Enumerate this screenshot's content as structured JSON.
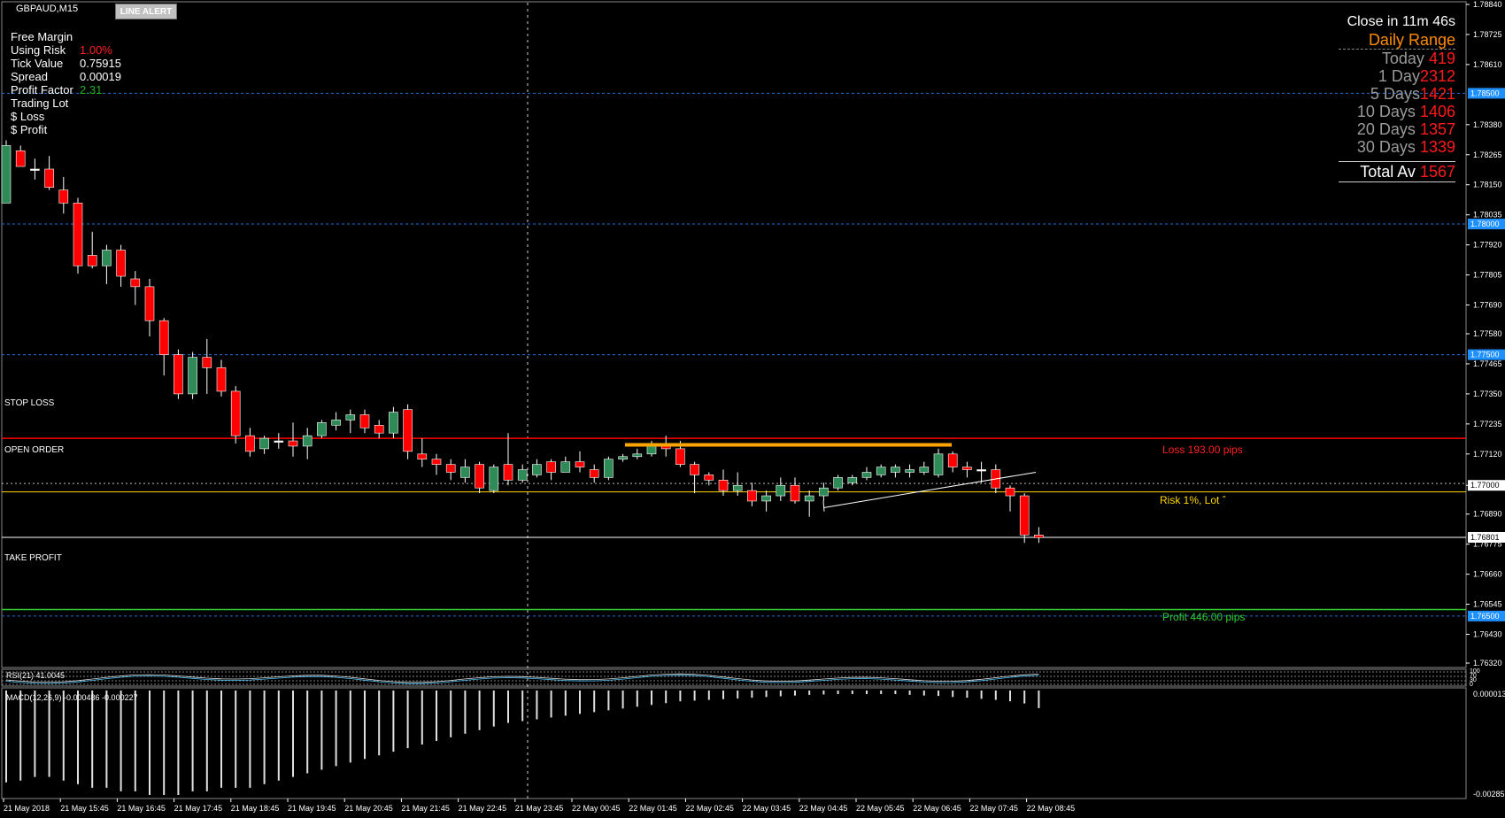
{
  "header": {
    "symbol": "GBPAUD,M15",
    "line_alert_button": "LINE ALERT"
  },
  "info_panel": {
    "rows": [
      {
        "label": "Free Margin",
        "value": "",
        "color": "#ffffff"
      },
      {
        "label": "Using Risk",
        "value": "1.00%",
        "color": "#ff2020"
      },
      {
        "label": "Tick Value",
        "value": "0.75915",
        "color": "#ffffff"
      },
      {
        "label": "Spread",
        "value": "0.00019",
        "color": "#ffffff"
      },
      {
        "label": "Profit Factor",
        "value": "2.31",
        "color": "#22b022"
      },
      {
        "label": "Trading Lot",
        "value": "",
        "color": "#ffffff"
      },
      {
        "label": "$ Loss",
        "value": "",
        "color": "#ff2020"
      },
      {
        "label": "$ Profit",
        "value": "",
        "color": "#22b022"
      }
    ]
  },
  "daily_range": {
    "countdown": "Close in 11m 46s",
    "title": "Daily Range",
    "rows": [
      {
        "label": "Today",
        "value": "419"
      },
      {
        "label": "1 Day",
        "value": "2312"
      },
      {
        "label": "5 Days",
        "value": "1421"
      },
      {
        "label": "10 Days",
        "value": "1406"
      },
      {
        "label": "20 Days",
        "value": "1357"
      },
      {
        "label": "30 Days",
        "value": "1339"
      }
    ],
    "total_label": "Total Av",
    "total_value": "1567"
  },
  "trade_lines": {
    "stop_loss_label": "STOP LOSS",
    "open_order_label": "OPEN ORDER",
    "take_profit_label": "TAKE PROFIT",
    "loss_text": "Loss 193.00 pips",
    "risk_text": "Risk 1%, Lot ˆ",
    "profit_text": "Profit 446.00 pips"
  },
  "indicators": {
    "rsi_label": "RSI(21) 41.0045",
    "macd_label": "MACD(12,26,9) -0.000486 -0.000227",
    "macd_axis_top": "0.000013",
    "macd_axis_bottom": "-0.002857",
    "rsi_axis_ticks": [
      "100",
      "70",
      "30",
      "0"
    ]
  },
  "colors": {
    "bull": "#2e8b57",
    "bear": "#ff0000",
    "stop_loss": "#ff0000",
    "open_order": "#ffd700",
    "take_profit": "#32cd32",
    "dotted_level": "#1e6fd9",
    "price_tag": "#1e90ff",
    "resistance_bar": "#ffa500"
  },
  "chart_data": {
    "type": "candlestick",
    "price_scale": {
      "labels": [
        "1.78840",
        "1.78725",
        "1.78610",
        "1.78380",
        "1.78265",
        "1.78150",
        "1.78035",
        "1.77920",
        "1.77805",
        "1.77690",
        "1.77580",
        "1.77465",
        "1.77350",
        "1.77235",
        "1.77120",
        "1.77000",
        "1.76890",
        "1.76775",
        "1.76660",
        "1.76545",
        "1.76430",
        "1.76320"
      ],
      "highlighted": [
        {
          "text": "1.78500",
          "color": "#1e90ff"
        },
        {
          "text": "1.78000",
          "color": "#1e90ff"
        },
        {
          "text": "1.77500",
          "color": "#1e90ff"
        },
        {
          "text": "1.77000",
          "color": "#ffffff"
        },
        {
          "text": "1.76801",
          "color": "#ffffff"
        },
        {
          "text": "1.76500",
          "color": "#1e90ff"
        }
      ]
    },
    "levels": {
      "dotted": [
        1.785,
        1.78,
        1.775,
        1.765
      ],
      "stop_loss": 1.7718,
      "open_order": 1.76975,
      "take_profit": 1.76525,
      "bid": 1.76801
    },
    "time_labels": [
      "21 May 2018",
      "21 May 15:45",
      "21 May 16:45",
      "21 May 17:45",
      "21 May 18:45",
      "21 May 19:45",
      "21 May 20:45",
      "21 May 21:45",
      "21 May 22:45",
      "21 May 23:45",
      "22 May 00:45",
      "22 May 01:45",
      "22 May 02:45",
      "22 May 03:45",
      "22 May 04:45",
      "22 May 05:45",
      "22 May 06:45",
      "22 May 07:45",
      "22 May 08:45"
    ],
    "candles": [
      [
        1.7808,
        1.7832,
        1.7808,
        1.783
      ],
      [
        1.7828,
        1.783,
        1.7822,
        1.7822
      ],
      [
        1.7821,
        1.7825,
        1.7817,
        1.7821
      ],
      [
        1.7821,
        1.7826,
        1.7813,
        1.7814
      ],
      [
        1.7813,
        1.7818,
        1.7804,
        1.7808
      ],
      [
        1.7808,
        1.781,
        1.7781,
        1.7784
      ],
      [
        1.7788,
        1.7797,
        1.7783,
        1.7784
      ],
      [
        1.7784,
        1.7792,
        1.7777,
        1.779
      ],
      [
        1.779,
        1.7792,
        1.7776,
        1.778
      ],
      [
        1.7779,
        1.7782,
        1.7769,
        1.7776
      ],
      [
        1.7776,
        1.7779,
        1.7757,
        1.7763
      ],
      [
        1.7763,
        1.7764,
        1.7742,
        1.775
      ],
      [
        1.775,
        1.7752,
        1.7733,
        1.7735
      ],
      [
        1.7735,
        1.7751,
        1.7733,
        1.7749
      ],
      [
        1.7749,
        1.7756,
        1.7735,
        1.7745
      ],
      [
        1.7745,
        1.7748,
        1.7734,
        1.7736
      ],
      [
        1.7736,
        1.7738,
        1.7716,
        1.7719
      ],
      [
        1.7719,
        1.7722,
        1.7711,
        1.7713
      ],
      [
        1.7714,
        1.7719,
        1.7712,
        1.7718
      ],
      [
        1.7717,
        1.772,
        1.7714,
        1.7717
      ],
      [
        1.7717,
        1.7724,
        1.7711,
        1.7715
      ],
      [
        1.7715,
        1.7722,
        1.771,
        1.7719
      ],
      [
        1.7719,
        1.7725,
        1.7718,
        1.7724
      ],
      [
        1.7723,
        1.7728,
        1.7721,
        1.7725
      ],
      [
        1.7725,
        1.7729,
        1.772,
        1.7727
      ],
      [
        1.7727,
        1.7729,
        1.772,
        1.7722
      ],
      [
        1.7723,
        1.7725,
        1.7718,
        1.772
      ],
      [
        1.772,
        1.773,
        1.7718,
        1.7728
      ],
      [
        1.7729,
        1.7731,
        1.771,
        1.7713
      ],
      [
        1.7712,
        1.7718,
        1.7707,
        1.771
      ],
      [
        1.771,
        1.7712,
        1.7704,
        1.7708
      ],
      [
        1.7708,
        1.771,
        1.7702,
        1.7705
      ],
      [
        1.7703,
        1.771,
        1.7701,
        1.7707
      ],
      [
        1.7708,
        1.7709,
        1.7697,
        1.7699
      ],
      [
        1.7698,
        1.7708,
        1.7697,
        1.7707
      ],
      [
        1.7708,
        1.772,
        1.77,
        1.7702
      ],
      [
        1.7702,
        1.7708,
        1.7701,
        1.7706
      ],
      [
        1.7704,
        1.771,
        1.7703,
        1.7708
      ],
      [
        1.7709,
        1.771,
        1.7702,
        1.7705
      ],
      [
        1.7705,
        1.7711,
        1.7705,
        1.7709
      ],
      [
        1.7709,
        1.7713,
        1.7705,
        1.7707
      ],
      [
        1.7706,
        1.7708,
        1.7701,
        1.7703
      ],
      [
        1.7703,
        1.7711,
        1.7702,
        1.771
      ],
      [
        1.771,
        1.7712,
        1.7709,
        1.7711
      ],
      [
        1.7711,
        1.7714,
        1.771,
        1.7712
      ],
      [
        1.7712,
        1.7717,
        1.7711,
        1.7715
      ],
      [
        1.7715,
        1.7719,
        1.7711,
        1.7714
      ],
      [
        1.7714,
        1.7717,
        1.7707,
        1.7708
      ],
      [
        1.7708,
        1.7709,
        1.7697,
        1.7704
      ],
      [
        1.7704,
        1.7705,
        1.77,
        1.7702
      ],
      [
        1.7702,
        1.7706,
        1.7696,
        1.7698
      ],
      [
        1.7698,
        1.7705,
        1.7696,
        1.77
      ],
      [
        1.7698,
        1.7701,
        1.7692,
        1.7694
      ],
      [
        1.7694,
        1.7698,
        1.769,
        1.7696
      ],
      [
        1.7696,
        1.7703,
        1.7694,
        1.77
      ],
      [
        1.77,
        1.7703,
        1.7693,
        1.7694
      ],
      [
        1.7694,
        1.7698,
        1.7688,
        1.7696
      ],
      [
        1.7696,
        1.7701,
        1.7694,
        1.7699
      ],
      [
        1.7699,
        1.7704,
        1.7698,
        1.7703
      ],
      [
        1.7701,
        1.7704,
        1.77,
        1.7703
      ],
      [
        1.7703,
        1.7707,
        1.7702,
        1.7705
      ],
      [
        1.7704,
        1.7708,
        1.7703,
        1.7707
      ],
      [
        1.7705,
        1.7708,
        1.7703,
        1.7707
      ],
      [
        1.7705,
        1.7708,
        1.7703,
        1.7706
      ],
      [
        1.7705,
        1.7709,
        1.7704,
        1.7707
      ],
      [
        1.7704,
        1.7714,
        1.7703,
        1.7712
      ],
      [
        1.7712,
        1.7713,
        1.7705,
        1.7707
      ],
      [
        1.7707,
        1.7709,
        1.7703,
        1.7706
      ],
      [
        1.7706,
        1.7709,
        1.7701,
        1.7706
      ],
      [
        1.7706,
        1.7708,
        1.7697,
        1.7699
      ],
      [
        1.7699,
        1.77,
        1.769,
        1.7696
      ],
      [
        1.7696,
        1.7697,
        1.7678,
        1.7681
      ],
      [
        1.7681,
        1.7684,
        1.7678,
        1.768
      ]
    ],
    "macd_histogram": [
      -0.00255,
      -0.0025,
      -0.0024,
      -0.0024,
      -0.0025,
      -0.0026,
      -0.0027,
      -0.0027,
      -0.0028,
      -0.0028,
      -0.0029,
      -0.0029,
      -0.0029,
      -0.0028,
      -0.0028,
      -0.0027,
      -0.0027,
      -0.0027,
      -0.0026,
      -0.0025,
      -0.0024,
      -0.0023,
      -0.0022,
      -0.0021,
      -0.002,
      -0.0019,
      -0.0018,
      -0.0017,
      -0.0016,
      -0.0015,
      -0.0014,
      -0.0013,
      -0.0012,
      -0.0011,
      -0.001,
      -0.0009,
      -0.00085,
      -0.0008,
      -0.00075,
      -0.0007,
      -0.00065,
      -0.0006,
      -0.00055,
      -0.0005,
      -0.00045,
      -0.0004,
      -0.00035,
      -0.0003,
      -0.00028,
      -0.00026,
      -0.00024,
      -0.00022,
      -0.0002,
      -0.00018,
      -0.00016,
      -0.00014,
      -0.00012,
      -0.00011,
      -0.0001,
      -0.0001,
      -0.0001,
      -0.0001,
      -0.0001,
      -0.00012,
      -0.00014,
      -0.00015,
      -0.00018,
      -0.0002,
      -0.00023,
      -0.00026,
      -0.0003,
      -0.00036,
      -0.00049
    ]
  }
}
